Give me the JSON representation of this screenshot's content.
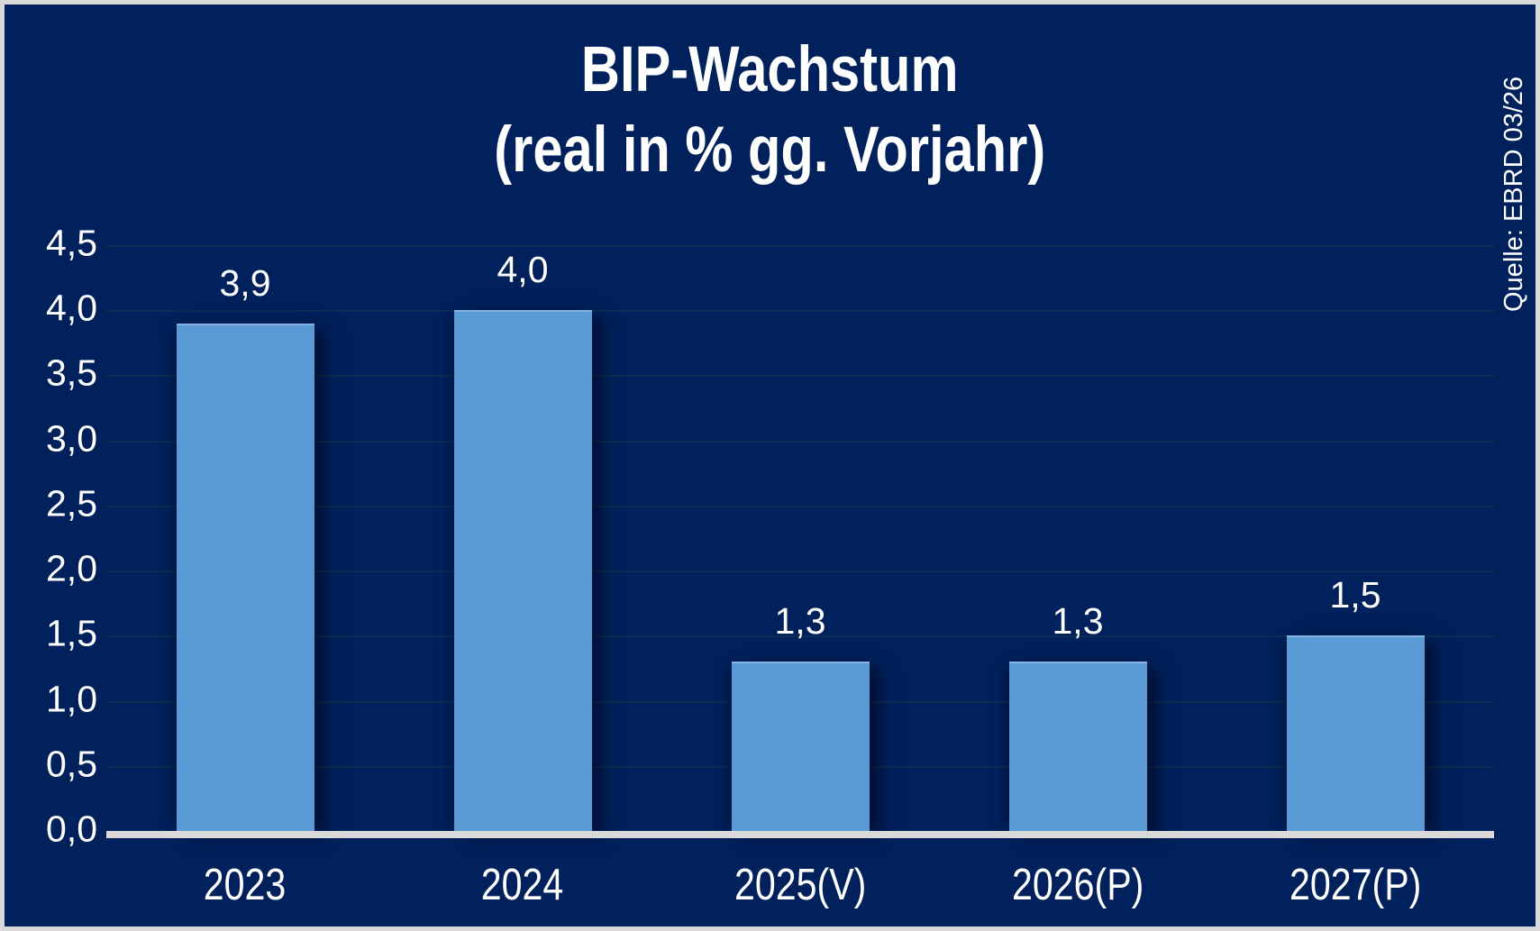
{
  "title": {
    "line1": "BIP-Wachstum",
    "line2": "(real in % gg. Vorjahr)"
  },
  "source_note": "Quelle: EBRD 03/26",
  "colors": {
    "background": "#01215c",
    "frame_border": "#d9d9d9",
    "bar_fill": "#5b9bd5",
    "gridline": "#0b2e52",
    "axis_line": "#d9d9d9",
    "text": "#ffffff"
  },
  "chart_data": {
    "type": "bar",
    "title": "BIP-Wachstum (real in % gg. Vorjahr)",
    "categories": [
      "2023",
      "2024",
      "2025(V)",
      "2026(P)",
      "2027(P)"
    ],
    "values": [
      3.9,
      4.0,
      1.3,
      1.3,
      1.5
    ],
    "value_labels": [
      "3,9",
      "4,0",
      "1,3",
      "1,3",
      "1,5"
    ],
    "xlabel": "",
    "ylabel": "",
    "ylim": [
      0,
      4.5
    ],
    "ytick_step": 0.5,
    "ytick_labels": [
      "0,0",
      "0,5",
      "1,0",
      "1,5",
      "2,0",
      "2,5",
      "3,0",
      "3,5",
      "4,0",
      "4,5"
    ],
    "grid": true,
    "legend": false,
    "source": "Quelle: EBRD 03/26"
  }
}
